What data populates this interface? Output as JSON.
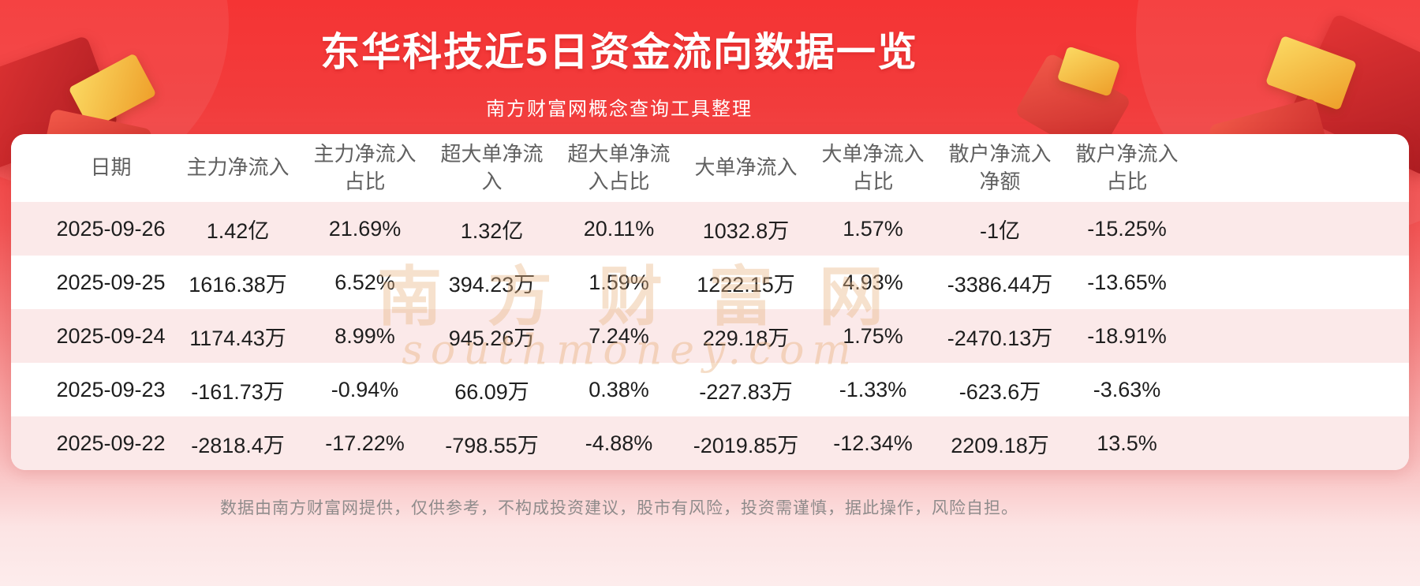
{
  "header": {
    "title": "东华科技近5日资金流向数据一览",
    "subtitle": "南方财富网概念查询工具整理"
  },
  "chart_data": {
    "type": "table",
    "title": "东华科技近5日资金流向数据一览",
    "columns": [
      "日期",
      "主力净流入",
      "主力净流入占比",
      "超大单净流入",
      "超大单净流入占比",
      "大单净流入",
      "大单净流入占比",
      "散户净流入净额",
      "散户净流入占比"
    ],
    "rows": [
      [
        "2025-09-26",
        "1.42亿",
        "21.69%",
        "1.32亿",
        "20.11%",
        "1032.8万",
        "1.57%",
        "-1亿",
        "-15.25%"
      ],
      [
        "2025-09-25",
        "1616.38万",
        "6.52%",
        "394.23万",
        "1.59%",
        "1222.15万",
        "4.93%",
        "-3386.44万",
        "-13.65%"
      ],
      [
        "2025-09-24",
        "1174.43万",
        "8.99%",
        "945.26万",
        "7.24%",
        "229.18万",
        "1.75%",
        "-2470.13万",
        "-18.91%"
      ],
      [
        "2025-09-23",
        "-161.73万",
        "-0.94%",
        "66.09万",
        "0.38%",
        "-227.83万",
        "-1.33%",
        "-623.6万",
        "-3.63%"
      ],
      [
        "2025-09-22",
        "-2818.4万",
        "-17.22%",
        "-798.55万",
        "-4.88%",
        "-2019.85万",
        "-12.34%",
        "2209.18万",
        "13.5%"
      ]
    ]
  },
  "watermark": {
    "line1": "南方财富网",
    "line2": "southmoney.com"
  },
  "footer": {
    "disclaimer": "数据由南方财富网提供，仅供参考，不构成投资建议，股市有风险，投资需谨慎，据此操作，风险自担。"
  },
  "colors": {
    "banner_red": "#f23c3c",
    "row_alt_pink": "#fbe9e9",
    "gold_accent": "#f0a22e",
    "text_dark": "#1e1e1e",
    "header_text": "#606060",
    "footer_text": "#8f8b8b"
  }
}
